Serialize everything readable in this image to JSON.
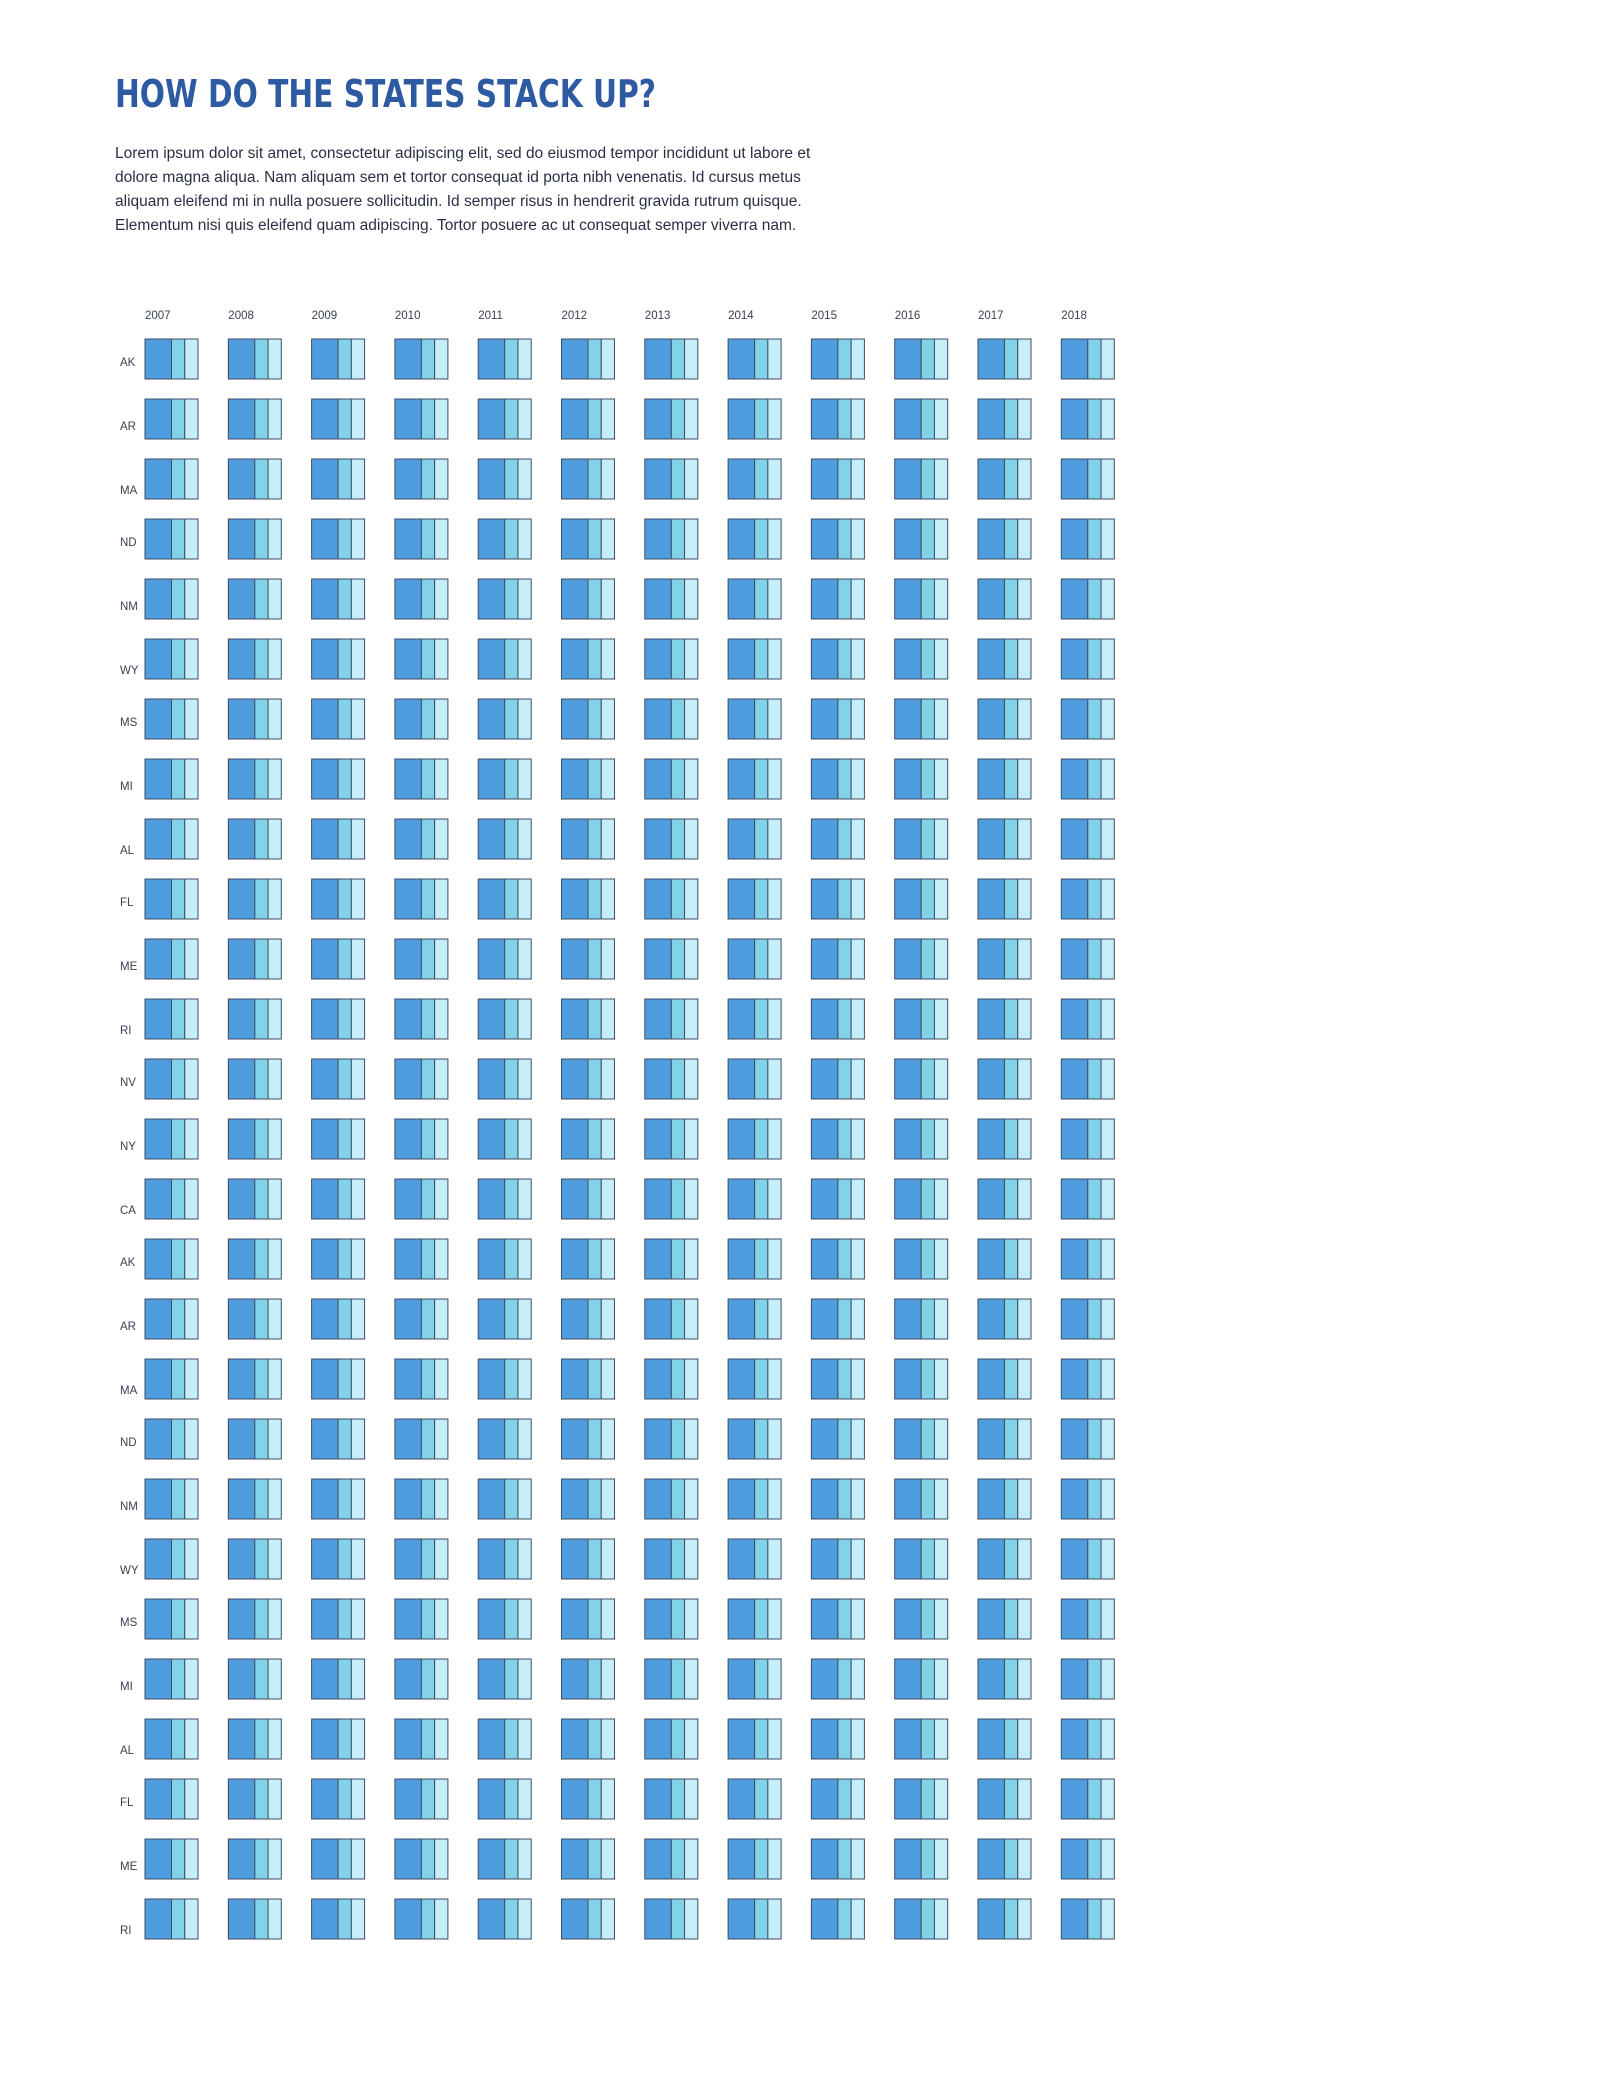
{
  "title": "HOW DO THE STATES STACK UP?",
  "intro": "Lorem ipsum dolor sit amet, consectetur adipiscing elit, sed do eiusmod tempor incididunt ut labore et dolore magna aliqua. Nam aliquam sem et tortor consequat id porta nibh venenatis. Id cursus metus aliquam eleifend mi in nulla posuere sollicitudin. Id semper risus in hendrerit gravida rutrum quisque. Elementum nisi quis eleifend quam adipiscing. Tortor posuere ac ut consequat semper viverra nam.",
  "colors": {
    "title": "#2d5aa0",
    "segment_1": "#4d9ddf",
    "segment_2": "#82d2e9",
    "segment_3": "#c6eef8",
    "outline": "#3f4d66"
  },
  "chart_data": {
    "type": "heatmap",
    "title": "HOW DO THE STATES STACK UP?",
    "x": [
      "2007",
      "2008",
      "2009",
      "2010",
      "2011",
      "2012",
      "2013",
      "2014",
      "2015",
      "2016",
      "2017",
      "2018"
    ],
    "rows": [
      "AK",
      "AR",
      "MA",
      "ND",
      "NM",
      "WY",
      "MS",
      "MI",
      "AL",
      "FL",
      "ME",
      "RI",
      "NV",
      "NY",
      "CA",
      "AK",
      "AR",
      "MA",
      "ND",
      "NM",
      "WY",
      "MS",
      "MI",
      "AL",
      "FL",
      "ME",
      "RI"
    ],
    "segments_per_cell": 3,
    "segment_shares": [
      0.5,
      0.25,
      0.25
    ],
    "legend": "none",
    "grid": false
  }
}
